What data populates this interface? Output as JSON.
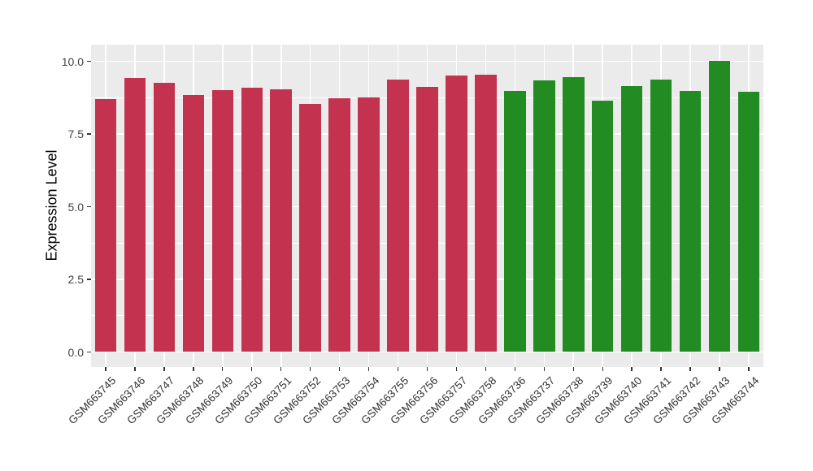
{
  "chart_data": {
    "type": "bar",
    "title": "",
    "xlabel": "",
    "ylabel": "Expression Level",
    "ylim": [
      0,
      10.6
    ],
    "y_major_ticks": [
      0.0,
      2.5,
      5.0,
      7.5,
      10.0
    ],
    "y_tick_labels": [
      "0.0",
      "2.5",
      "5.0",
      "7.5",
      "10.0"
    ],
    "y_minor_ticks": [
      1.25,
      3.75,
      6.25,
      8.75
    ],
    "grid": true,
    "legend_position": "none",
    "panel_bg": "#EBEBEB",
    "grid_color": "#FFFFFF",
    "groups": {
      "group-1": {
        "color": "#C3334F"
      },
      "group-2": {
        "color": "#228B22"
      }
    },
    "bars": [
      {
        "label": "GSM663745",
        "value": 8.7,
        "group": "group-1"
      },
      {
        "label": "GSM663746",
        "value": 9.43,
        "group": "group-1"
      },
      {
        "label": "GSM663747",
        "value": 9.26,
        "group": "group-1"
      },
      {
        "label": "GSM663748",
        "value": 8.84,
        "group": "group-1"
      },
      {
        "label": "GSM663749",
        "value": 9.01,
        "group": "group-1"
      },
      {
        "label": "GSM663750",
        "value": 9.09,
        "group": "group-1"
      },
      {
        "label": "GSM663751",
        "value": 9.05,
        "group": "group-1"
      },
      {
        "label": "GSM663752",
        "value": 8.53,
        "group": "group-1"
      },
      {
        "label": "GSM663753",
        "value": 8.73,
        "group": "group-1"
      },
      {
        "label": "GSM663754",
        "value": 8.76,
        "group": "group-1"
      },
      {
        "label": "GSM663755",
        "value": 9.36,
        "group": "group-1"
      },
      {
        "label": "GSM663756",
        "value": 9.12,
        "group": "group-1"
      },
      {
        "label": "GSM663757",
        "value": 9.51,
        "group": "group-1"
      },
      {
        "label": "GSM663758",
        "value": 9.55,
        "group": "group-1"
      },
      {
        "label": "GSM663736",
        "value": 8.99,
        "group": "group-2"
      },
      {
        "label": "GSM663737",
        "value": 9.34,
        "group": "group-2"
      },
      {
        "label": "GSM663738",
        "value": 9.46,
        "group": "group-2"
      },
      {
        "label": "GSM663739",
        "value": 8.65,
        "group": "group-2"
      },
      {
        "label": "GSM663740",
        "value": 9.14,
        "group": "group-2"
      },
      {
        "label": "GSM663741",
        "value": 9.36,
        "group": "group-2"
      },
      {
        "label": "GSM663742",
        "value": 8.99,
        "group": "group-2"
      },
      {
        "label": "GSM663743",
        "value": 10.02,
        "group": "group-2"
      },
      {
        "label": "GSM663744",
        "value": 8.96,
        "group": "group-2"
      }
    ]
  }
}
